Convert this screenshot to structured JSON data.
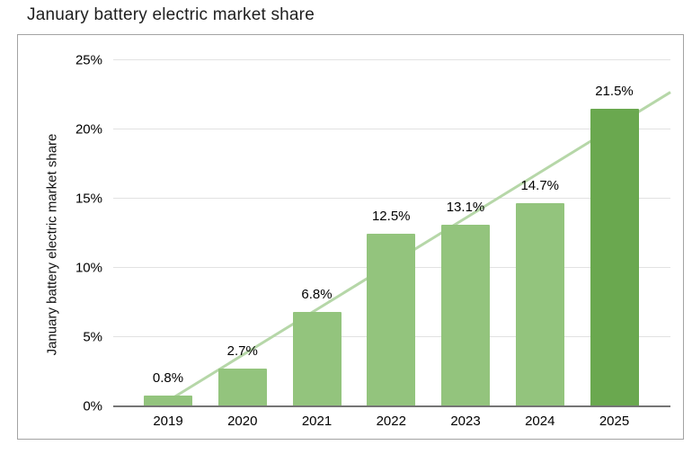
{
  "page": {
    "title": "January battery electric market share"
  },
  "chart_data": {
    "type": "bar",
    "title": "January battery electric market share",
    "xlabel": "",
    "ylabel": "January battery electric market share",
    "categories": [
      "2019",
      "2020",
      "2021",
      "2022",
      "2023",
      "2024",
      "2025"
    ],
    "values": [
      0.8,
      2.7,
      6.8,
      12.5,
      13.1,
      14.7,
      21.5
    ],
    "value_labels": [
      "0.8%",
      "2.7%",
      "6.8%",
      "12.5%",
      "13.1%",
      "14.7%",
      "21.5%"
    ],
    "ylim": [
      0,
      25
    ],
    "ytick_step": 5,
    "ytick_labels": [
      "0%",
      "5%",
      "10%",
      "15%",
      "20%",
      "25%"
    ],
    "grid": true,
    "legend": false,
    "trendline": {
      "type": "linear"
    },
    "colors": {
      "bar": "#93c47d",
      "bar_highlight": "#6aa84f",
      "highlight_index": 6,
      "trendline": "#b6d7a8",
      "gridline": "#e2e2e2",
      "axis_line": "#757575",
      "frame_border": "#a3a3a3",
      "text": "#000000"
    }
  }
}
